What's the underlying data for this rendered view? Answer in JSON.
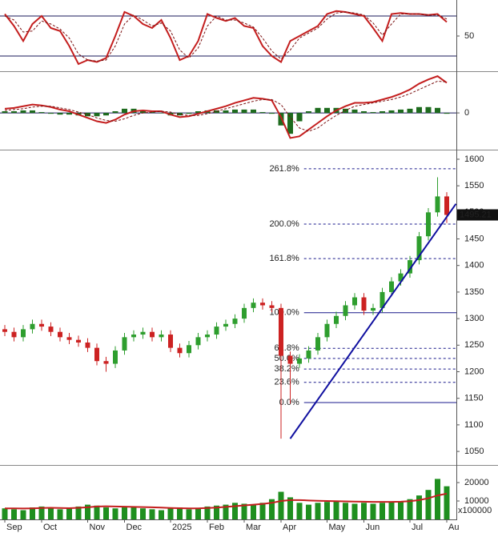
{
  "chart_data": [
    {
      "type": "line",
      "ylim": [
        15.6,
        86
      ],
      "yticks": [
        50
      ],
      "grid": false,
      "hlines": [
        70,
        30
      ],
      "hline_color": "#1a1a5a",
      "series": [
        {
          "color": "#c41e1e",
          "style": "solid",
          "values": [
            72,
            60,
            45,
            62,
            70,
            58,
            55,
            40,
            22,
            26,
            24,
            28,
            50,
            74,
            70,
            62,
            58,
            66,
            48,
            26,
            30,
            45,
            72,
            68,
            65,
            68,
            60,
            58,
            40,
            30,
            24,
            45,
            50,
            55,
            60,
            72,
            75,
            74,
            72,
            70,
            58,
            45,
            72,
            73,
            72,
            72,
            71,
            72,
            64
          ]
        },
        {
          "color": "#7a1010",
          "style": "dashed",
          "values": [
            70,
            66,
            54,
            55,
            65,
            62,
            57,
            48,
            32,
            26,
            25,
            26,
            40,
            62,
            71,
            66,
            60,
            63,
            55,
            36,
            28,
            38,
            60,
            70,
            66,
            66,
            63,
            59,
            48,
            35,
            27,
            36,
            48,
            53,
            58,
            67,
            73,
            74,
            73,
            71,
            63,
            51,
            62,
            72,
            72,
            72,
            71,
            71,
            67
          ]
        }
      ]
    },
    {
      "type": "combo",
      "ylim": [
        -43,
        47
      ],
      "yticks": [
        0
      ],
      "grid": true,
      "series": [
        {
          "color": "#1e6b1e",
          "style": "bar",
          "values": [
            2,
            2,
            3,
            3,
            1,
            -1,
            -2,
            -2,
            -3,
            -4,
            -4,
            -3,
            2,
            5,
            5,
            3,
            1,
            0,
            -3,
            -3,
            -1,
            2,
            3,
            3,
            3,
            4,
            4,
            4,
            1,
            -1,
            -15,
            -25,
            -10,
            2,
            6,
            6,
            6,
            5,
            4,
            2,
            1,
            2,
            3,
            4,
            5,
            7,
            7,
            6,
            -1
          ]
        },
        {
          "color": "#c41e1e",
          "style": "solid",
          "values": [
            5,
            6,
            8,
            10,
            9,
            7,
            4,
            2,
            -2,
            -6,
            -10,
            -12,
            -8,
            -2,
            2,
            3,
            2,
            2,
            -2,
            -5,
            -4,
            -1,
            2,
            5,
            8,
            12,
            15,
            18,
            17,
            15,
            -5,
            -30,
            -28,
            -20,
            -12,
            -4,
            3,
            8,
            12,
            12,
            13,
            16,
            19,
            23,
            28,
            35,
            40,
            44,
            36
          ]
        },
        {
          "color": "#7a1010",
          "style": "dashed",
          "values": [
            3,
            4,
            5,
            7,
            8,
            8,
            6,
            4,
            1,
            -2,
            -6,
            -9,
            -10,
            -7,
            -3,
            0,
            1,
            2,
            1,
            -2,
            -3,
            -3,
            -1,
            2,
            5,
            8,
            11,
            14,
            16,
            16,
            10,
            -5,
            -18,
            -22,
            -18,
            -10,
            -3,
            3,
            8,
            10,
            12,
            14,
            16,
            19,
            23,
            28,
            33,
            38,
            37
          ]
        }
      ]
    },
    {
      "type": "candlestick",
      "ylim": [
        1026,
        1615
      ],
      "yticks": [
        1050,
        1100,
        1150,
        1200,
        1250,
        1300,
        1350,
        1400,
        1450,
        1500,
        1550,
        1600
      ],
      "grid": false,
      "up_color": "#2e9e2e",
      "down_color": "#cc2222",
      "categories": [
        "Sep",
        null,
        null,
        null,
        "Oct",
        null,
        null,
        null,
        null,
        "Nov",
        null,
        null,
        null,
        "Dec",
        null,
        null,
        null,
        null,
        "2025",
        null,
        null,
        null,
        "Feb",
        null,
        null,
        null,
        "Mar",
        null,
        null,
        null,
        "Apr",
        null,
        null,
        null,
        null,
        "May",
        null,
        null,
        null,
        "Jun",
        null,
        null,
        null,
        null,
        "Jul",
        null,
        null,
        null,
        "Au"
      ],
      "open": [
        1280,
        1275,
        1265,
        1280,
        1290,
        1285,
        1275,
        1265,
        1260,
        1255,
        1245,
        1220,
        1215,
        1240,
        1265,
        1270,
        1275,
        1265,
        1270,
        1245,
        1235,
        1250,
        1265,
        1270,
        1285,
        1290,
        1300,
        1320,
        1330,
        1325,
        1320,
        1230,
        1215,
        1225,
        1240,
        1265,
        1290,
        1305,
        1325,
        1340,
        1315,
        1320,
        1350,
        1370,
        1385,
        1410,
        1455,
        1500,
        1530
      ],
      "high": [
        1288,
        1283,
        1288,
        1298,
        1298,
        1293,
        1283,
        1273,
        1268,
        1263,
        1253,
        1228,
        1248,
        1273,
        1278,
        1283,
        1283,
        1278,
        1278,
        1253,
        1258,
        1273,
        1278,
        1293,
        1298,
        1308,
        1328,
        1338,
        1338,
        1333,
        1328,
        1238,
        1233,
        1248,
        1273,
        1298,
        1313,
        1333,
        1348,
        1348,
        1328,
        1358,
        1378,
        1393,
        1418,
        1463,
        1508,
        1566,
        1538
      ],
      "low": [
        1267,
        1257,
        1257,
        1272,
        1277,
        1267,
        1257,
        1252,
        1247,
        1237,
        1212,
        1200,
        1207,
        1232,
        1257,
        1262,
        1257,
        1257,
        1237,
        1227,
        1227,
        1242,
        1257,
        1262,
        1277,
        1282,
        1292,
        1312,
        1317,
        1312,
        1074,
        1140,
        1207,
        1217,
        1232,
        1257,
        1282,
        1297,
        1317,
        1307,
        1307,
        1312,
        1342,
        1362,
        1377,
        1402,
        1447,
        1492,
        1480
      ],
      "close": [
        1275,
        1265,
        1280,
        1290,
        1285,
        1275,
        1265,
        1260,
        1255,
        1245,
        1220,
        1215,
        1240,
        1265,
        1270,
        1275,
        1265,
        1270,
        1245,
        1235,
        1250,
        1265,
        1270,
        1285,
        1290,
        1300,
        1320,
        1330,
        1325,
        1320,
        1230,
        1215,
        1225,
        1240,
        1265,
        1290,
        1305,
        1325,
        1340,
        1315,
        1320,
        1350,
        1370,
        1385,
        1410,
        1455,
        1500,
        1530,
        1495.21
      ],
      "fib_color": "#1a1a8c",
      "fib_levels": [
        {
          "label": "261.8%",
          "value": 1582,
          "style": "dashed"
        },
        {
          "label": "200.0%",
          "value": 1478,
          "style": "dashed"
        },
        {
          "label": "161.8%",
          "value": 1413,
          "style": "dashed"
        },
        {
          "label": "100.0%",
          "value": 1311,
          "style": "solid"
        },
        {
          "label": "61.8%",
          "value": 1244,
          "style": "dashed"
        },
        {
          "label": "50.0%",
          "value": 1225,
          "style": "dashed"
        },
        {
          "label": "38.2%",
          "value": 1205,
          "style": "dashed"
        },
        {
          "label": "23.6%",
          "value": 1180,
          "style": "dashed"
        },
        {
          "label": "0.0%",
          "value": 1142,
          "style": "solid"
        }
      ],
      "trendline": {
        "color": "#1010a0",
        "points": [
          {
            "index": 31,
            "price": 1074
          },
          {
            "index": 49,
            "price": 1516
          }
        ]
      }
    },
    {
      "type": "combo",
      "ylim": [
        0,
        28700
      ],
      "yticks": [
        10000,
        20000
      ],
      "grid": false,
      "unit_label": "x100000",
      "series": [
        {
          "color": "#1f8f1f",
          "style": "bar",
          "values": [
            6000,
            5500,
            5000,
            6500,
            7000,
            6000,
            5500,
            6000,
            7000,
            8000,
            7500,
            6500,
            6000,
            6500,
            7000,
            6000,
            5500,
            5000,
            6000,
            6500,
            5500,
            6000,
            7000,
            7500,
            8000,
            9000,
            8500,
            8000,
            9000,
            11000,
            15000,
            12000,
            9000,
            8000,
            9000,
            9500,
            10000,
            9000,
            8500,
            9000,
            8500,
            9000,
            9500,
            10000,
            11000,
            13000,
            16000,
            22000,
            18000
          ]
        },
        {
          "color": "#c41e1e",
          "style": "solid",
          "values": [
            6000,
            6000,
            5900,
            6000,
            6200,
            6300,
            6200,
            6100,
            6300,
            6600,
            7000,
            7100,
            7000,
            6900,
            6800,
            6700,
            6600,
            6400,
            6200,
            6100,
            6000,
            6000,
            6200,
            6400,
            6800,
            7200,
            7600,
            8000,
            8400,
            9000,
            10000,
            10500,
            10500,
            10300,
            10100,
            10000,
            9900,
            9800,
            9700,
            9600,
            9500,
            9500,
            9500,
            9600,
            9900,
            10500,
            11500,
            13000,
            14000
          ]
        }
      ]
    }
  ]
}
